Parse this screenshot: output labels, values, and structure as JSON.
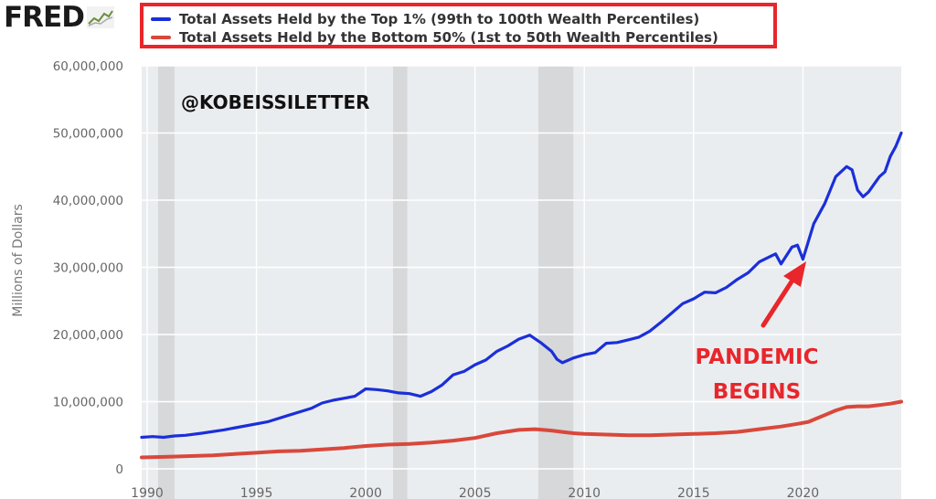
{
  "brand": {
    "name": "FRED",
    "logo_icon": "fred-graph-icon"
  },
  "legend": {
    "items": [
      {
        "label": "Total Assets Held by the Top 1% (99th to 100th Wealth Percentiles)",
        "color": "#1b2fd8"
      },
      {
        "label": "Total Assets Held by the Bottom 50% (1st to 50th Wealth Percentiles)",
        "color": "#d9483b"
      }
    ],
    "highlight_color": "#e8262b"
  },
  "watermark": "@KOBEISSILETTER",
  "annotation": {
    "lines": [
      "PANDEMIC",
      "BEGINS"
    ],
    "color": "#e8262b"
  },
  "chart_data": {
    "type": "line",
    "title": "",
    "xlabel": "",
    "ylabel": "Millions of Dollars",
    "xlim": [
      1989.75,
      2024.5
    ],
    "ylim": [
      0,
      60000000
    ],
    "yticks": [
      0,
      10000000,
      20000000,
      30000000,
      40000000,
      50000000,
      60000000
    ],
    "ytick_labels": [
      "0",
      "10,000,000",
      "20,000,000",
      "30,000,000",
      "40,000,000",
      "50,000,000",
      "60,000,000"
    ],
    "xticks": [
      1990,
      1995,
      2000,
      2005,
      2010,
      2015,
      2020
    ],
    "xtick_labels": [
      "1990",
      "1995",
      "2000",
      "2005",
      "2010",
      "2015",
      "2020"
    ],
    "grid": true,
    "legend_position": "top",
    "recessions": [
      [
        1990.5,
        1991.25
      ],
      [
        2001.25,
        2001.9
      ],
      [
        2007.9,
        2009.5
      ]
    ],
    "series": [
      {
        "name": "Total Assets Held by the Top 1% (99th to 100th Wealth Percentiles)",
        "color": "#1b2fd8",
        "x": [
          1989.75,
          1990.25,
          1990.75,
          1991.25,
          1991.75,
          1992.5,
          1993.5,
          1994.5,
          1995.5,
          1996.5,
          1997.5,
          1998.0,
          1998.5,
          1999.0,
          1999.5,
          2000.0,
          2000.5,
          2001.0,
          2001.5,
          2002.0,
          2002.5,
          2003.0,
          2003.5,
          2004.0,
          2004.5,
          2005.0,
          2005.5,
          2006.0,
          2006.5,
          2007.0,
          2007.5,
          2008.0,
          2008.5,
          2008.75,
          2009.0,
          2009.5,
          2010.0,
          2010.5,
          2011.0,
          2011.5,
          2012.0,
          2012.5,
          2013.0,
          2013.5,
          2014.0,
          2014.5,
          2015.0,
          2015.5,
          2016.0,
          2016.5,
          2017.0,
          2017.5,
          2018.0,
          2018.5,
          2018.75,
          2019.0,
          2019.5,
          2019.75,
          2020.0,
          2020.5,
          2021.0,
          2021.5,
          2022.0,
          2022.25,
          2022.5,
          2022.75,
          2023.0,
          2023.5,
          2023.75,
          2024.0,
          2024.25,
          2024.5
        ],
        "values": [
          4700000,
          4800000,
          4700000,
          4900000,
          5000000,
          5300000,
          5800000,
          6400000,
          7000000,
          8000000,
          9000000,
          9800000,
          10200000,
          10500000,
          10800000,
          11900000,
          11800000,
          11600000,
          11300000,
          11200000,
          10800000,
          11500000,
          12500000,
          14000000,
          14500000,
          15500000,
          16200000,
          17500000,
          18300000,
          19300000,
          19900000,
          18800000,
          17500000,
          16300000,
          15800000,
          16500000,
          17000000,
          17300000,
          18700000,
          18800000,
          19200000,
          19600000,
          20500000,
          21800000,
          23200000,
          24600000,
          25300000,
          26300000,
          26200000,
          27000000,
          28200000,
          29200000,
          30800000,
          31600000,
          32000000,
          30500000,
          33000000,
          33300000,
          31200000,
          36500000,
          39500000,
          43500000,
          45000000,
          44500000,
          41500000,
          40500000,
          41200000,
          43500000,
          44200000,
          46500000,
          48000000,
          50000000
        ]
      },
      {
        "name": "Total Assets Held by the Bottom 50% (1st to 50th Wealth Percentiles)",
        "color": "#d9483b",
        "x": [
          1989.75,
          1991.0,
          1992.0,
          1993.0,
          1994.0,
          1995.0,
          1996.0,
          1997.0,
          1998.0,
          1999.0,
          2000.0,
          2001.0,
          2002.0,
          2003.0,
          2004.0,
          2005.0,
          2006.0,
          2007.0,
          2007.75,
          2008.5,
          2009.0,
          2009.5,
          2010.0,
          2011.0,
          2012.0,
          2013.0,
          2014.0,
          2015.0,
          2016.0,
          2017.0,
          2018.0,
          2019.0,
          2019.75,
          2020.25,
          2021.0,
          2021.5,
          2022.0,
          2022.5,
          2023.0,
          2023.5,
          2024.0,
          2024.5
        ],
        "values": [
          1700000,
          1800000,
          1900000,
          2000000,
          2200000,
          2400000,
          2600000,
          2700000,
          2900000,
          3100000,
          3400000,
          3600000,
          3700000,
          3900000,
          4200000,
          4600000,
          5300000,
          5800000,
          5900000,
          5700000,
          5500000,
          5300000,
          5200000,
          5100000,
          5000000,
          5000000,
          5100000,
          5200000,
          5300000,
          5500000,
          5900000,
          6300000,
          6700000,
          7000000,
          8000000,
          8700000,
          9200000,
          9300000,
          9300000,
          9500000,
          9700000,
          10000000
        ]
      }
    ]
  }
}
